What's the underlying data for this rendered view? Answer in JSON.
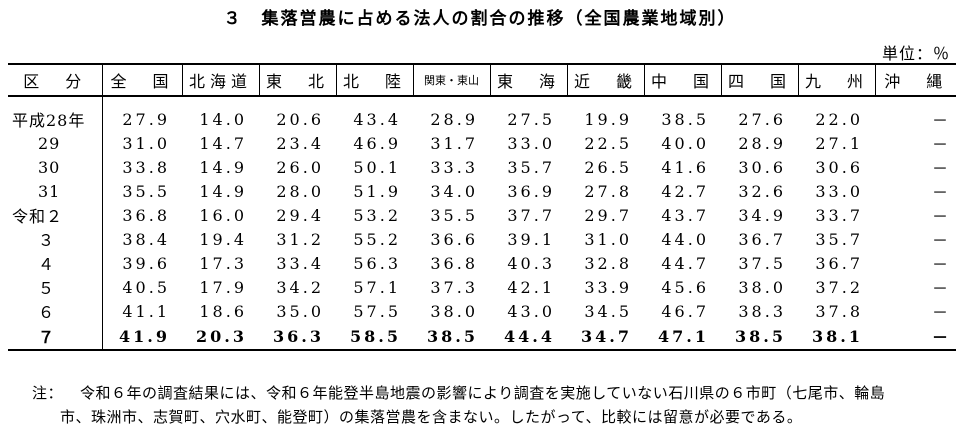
{
  "title": "３　集落営農に占める法人の割合の推移（全国農業地域別）",
  "unit": "単位：％",
  "table": {
    "headers": [
      "区　分",
      "全　国",
      "北海道",
      "東　北",
      "北　陸",
      "関東・東山",
      "東　海",
      "近　畿",
      "中　国",
      "四　国",
      "九　州",
      "沖　縄"
    ],
    "rows": [
      {
        "label": "平成28年",
        "values": [
          "27.9",
          "14.0",
          "20.6",
          "43.4",
          "28.9",
          "27.5",
          "19.9",
          "38.5",
          "27.6",
          "22.0",
          "－"
        ]
      },
      {
        "label": "29",
        "values": [
          "31.0",
          "14.7",
          "23.4",
          "46.9",
          "31.7",
          "33.0",
          "22.5",
          "40.0",
          "28.9",
          "27.1",
          "－"
        ]
      },
      {
        "label": "30",
        "values": [
          "33.8",
          "14.9",
          "26.0",
          "50.1",
          "33.3",
          "35.7",
          "26.5",
          "41.6",
          "30.6",
          "30.6",
          "－"
        ]
      },
      {
        "label": "31",
        "values": [
          "35.5",
          "14.9",
          "28.0",
          "51.9",
          "34.0",
          "36.9",
          "27.8",
          "42.7",
          "32.6",
          "33.0",
          "－"
        ]
      },
      {
        "label": "令和２",
        "values": [
          "36.8",
          "16.0",
          "29.4",
          "53.2",
          "35.5",
          "37.7",
          "29.7",
          "43.7",
          "34.9",
          "33.7",
          "－"
        ]
      },
      {
        "label": "３",
        "values": [
          "38.4",
          "19.4",
          "31.2",
          "55.2",
          "36.6",
          "39.1",
          "31.0",
          "44.0",
          "36.7",
          "35.7",
          "－"
        ]
      },
      {
        "label": "４",
        "values": [
          "39.6",
          "17.3",
          "33.4",
          "56.3",
          "36.8",
          "40.3",
          "32.8",
          "44.7",
          "37.5",
          "36.7",
          "－"
        ]
      },
      {
        "label": "５",
        "values": [
          "40.5",
          "17.9",
          "34.2",
          "57.1",
          "37.3",
          "42.1",
          "33.9",
          "45.6",
          "38.0",
          "37.2",
          "－"
        ]
      },
      {
        "label": "６",
        "values": [
          "41.1",
          "18.6",
          "35.0",
          "57.5",
          "38.0",
          "43.0",
          "34.5",
          "46.7",
          "38.3",
          "37.8",
          "－"
        ]
      },
      {
        "label": "７",
        "values": [
          "41.9",
          "20.3",
          "36.3",
          "58.5",
          "38.5",
          "44.4",
          "34.7",
          "47.1",
          "38.5",
          "38.1",
          "－"
        ]
      }
    ]
  },
  "note": {
    "prefix": "注：",
    "line1": "令和６年の調査結果には、令和６年能登半島地震の影響により調査を実施していない石川県の６市町（七尾市、輪島",
    "line2": "市、珠洲市、志賀町、穴水町、能登町）の集落営農を含まない。したがって、比較には留意が必要である。"
  }
}
